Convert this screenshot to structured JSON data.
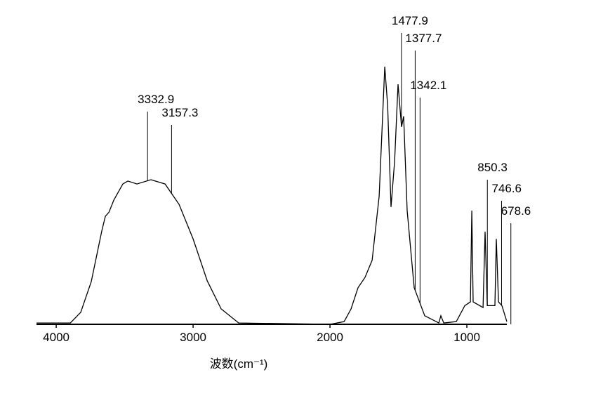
{
  "chart_data": {
    "type": "line",
    "x_label": "波数(cm⁻¹)",
    "xlim": [
      4144,
      708
    ],
    "ylim": [
      0,
      100
    ],
    "xticks": [
      4000,
      3000,
      2000,
      1000
    ],
    "series": [
      {
        "color": "#000000",
        "x": [
          4144,
          3897,
          3821,
          3744,
          3667,
          3641,
          3615,
          3579,
          3513,
          3477,
          3410,
          3308,
          3205,
          3103,
          3000,
          2897,
          2795,
          2667,
          2000,
          1897,
          1846,
          1795,
          1744,
          1692,
          1641,
          1600,
          1579,
          1554,
          1528,
          1503,
          1477,
          1462,
          1436,
          1385,
          1308,
          1205,
          1190,
          1169,
          1077,
          1015,
          974,
          964,
          954,
          882,
          867,
          851,
          795,
          785,
          769,
          744,
          708
        ],
        "values": [
          0.5,
          0.5,
          4.5,
          16,
          35,
          40.5,
          42,
          46.6,
          52.6,
          53.7,
          52.6,
          54.2,
          52.6,
          45,
          32,
          16.3,
          5.8,
          0.5,
          0,
          1,
          5.8,
          13.7,
          17.6,
          24,
          48,
          96.6,
          82,
          44,
          61,
          90,
          74,
          78,
          42.6,
          13.7,
          3.2,
          0.5,
          3.2,
          0.5,
          1,
          7,
          8.4,
          42.6,
          8.4,
          6.3,
          34.7,
          7,
          7,
          32,
          8.4,
          7,
          1
        ]
      }
    ],
    "annotations": [
      3332.9,
      3157.3,
      1477.9,
      1377.7,
      1342.1,
      850.3,
      746.6,
      678.6
    ]
  }
}
